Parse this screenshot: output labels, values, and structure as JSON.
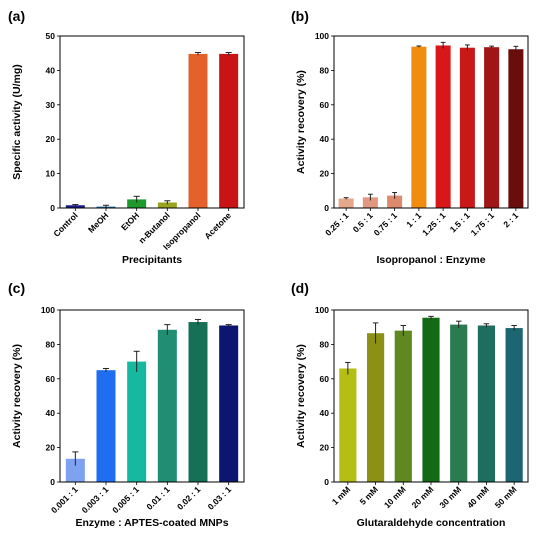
{
  "chart_data": [
    {
      "panel": "(a)",
      "type": "bar",
      "xlabel": "Precipitants",
      "ylabel": "Specific activity (U/mg)",
      "ylim": [
        0,
        50
      ],
      "yticks": [
        0,
        10,
        20,
        30,
        40,
        50
      ],
      "categories": [
        "Control",
        "MeOH",
        "EtOH",
        "n-Butanol",
        "Isopropanol",
        "Acetone"
      ],
      "values": [
        0.8,
        0.4,
        2.5,
        1.6,
        44.8,
        44.8
      ],
      "errors": [
        0.2,
        0.4,
        0.9,
        0.5,
        0.4,
        0.4
      ],
      "colors": [
        "#1a1a8c",
        "#1b6ea8",
        "#1f9a2a",
        "#9aa51f",
        "#e4612b",
        "#c81414"
      ],
      "tick_rotation": -45
    },
    {
      "panel": "(b)",
      "type": "bar",
      "xlabel": "Isopropanol : Enzyme",
      "ylabel": "Activity recovery (%)",
      "ylim": [
        0,
        100
      ],
      "yticks": [
        0,
        20,
        40,
        60,
        80,
        100
      ],
      "categories": [
        "0.25 : 1",
        "0.5 : 1",
        "0.75 : 1",
        "1 : 1",
        "1.25 : 1",
        "1.5 : 1",
        "1.75 : 1",
        "2 : 1"
      ],
      "values": [
        5.5,
        6.2,
        7.2,
        93.8,
        94.5,
        93.2,
        93.5,
        92.3
      ],
      "errors": [
        0.5,
        1.8,
        1.8,
        0.4,
        1.8,
        1.6,
        0.6,
        1.7
      ],
      "colors": [
        "#e6a88a",
        "#e09880",
        "#dd8a6e",
        "#f08c10",
        "#d81818",
        "#c91818",
        "#a01616",
        "#6a0d0d"
      ],
      "tick_rotation": -45
    },
    {
      "panel": "(c)",
      "type": "bar",
      "xlabel": "Enzyme : APTES-coated MNPs",
      "ylabel": "Activity recovery (%)",
      "ylim": [
        0,
        100
      ],
      "yticks": [
        0,
        20,
        40,
        60,
        80,
        100
      ],
      "categories": [
        "0.001 : 1",
        "0.003 : 1",
        "0.005 : 1",
        "0.01 : 1",
        "0.02 : 1",
        "0.03 : 1"
      ],
      "values": [
        13.5,
        65,
        70,
        88.5,
        93,
        91
      ],
      "errors": [
        4,
        1,
        6,
        3,
        1.5,
        0.5
      ],
      "colors": [
        "#7fa2f0",
        "#1f6ef2",
        "#17b8a0",
        "#1f8e72",
        "#167056",
        "#0b1670"
      ],
      "tick_rotation": -45
    },
    {
      "panel": "(d)",
      "type": "bar",
      "xlabel": "Glutaraldehyde concentration",
      "ylabel": "Activity recovery (%)",
      "ylim": [
        0,
        100
      ],
      "yticks": [
        0,
        20,
        40,
        60,
        80,
        100
      ],
      "categories": [
        "1 mM",
        "5 mM",
        "10 mM",
        "20 mM",
        "30 mM",
        "40 mM",
        "50 mM"
      ],
      "values": [
        66,
        86.5,
        88,
        95.5,
        91.5,
        91,
        89.5
      ],
      "errors": [
        3.5,
        6,
        3,
        0.8,
        2,
        1,
        1.5
      ],
      "colors": [
        "#b4be14",
        "#8c9014",
        "#5f8820",
        "#136a14",
        "#2a7c50",
        "#1e6e60",
        "#1b6670"
      ],
      "tick_rotation": -45
    }
  ]
}
